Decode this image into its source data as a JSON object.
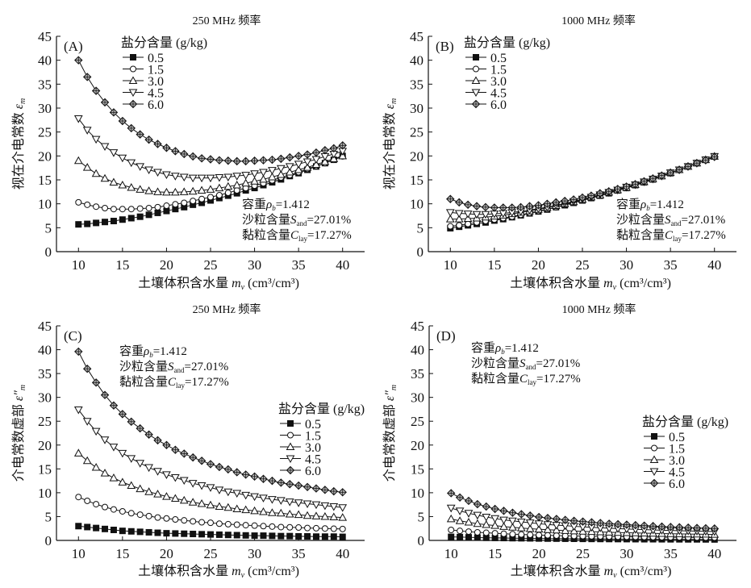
{
  "chart_data": [
    {
      "id": "A",
      "type": "line",
      "panel_label": "(A)",
      "title": "250 MHz 频率",
      "xlabel_cn": "土壤体积含水量",
      "xlabel_sym": "m",
      "xlabel_sub": "v",
      "xlabel_unit": "(cm³/cm³)",
      "ylabel_cn": "视在介电常数",
      "ylabel_sym": "ε",
      "ylabel_sub": "m",
      "xlim": [
        7.5,
        42.5
      ],
      "ylim": [
        0,
        45
      ],
      "xticks": [
        10,
        15,
        20,
        25,
        30,
        35,
        40
      ],
      "yticks": [
        0,
        5,
        10,
        15,
        20,
        25,
        30,
        35,
        40,
        45
      ],
      "legend_title": "盐分含量 (g/kg)",
      "legend_position": "top-center",
      "annotation_position": "bottom-right",
      "annotation": [
        "容重ρb=1.412",
        "沙粒含量Sand=27.01%",
        "黏粒含量Clay=17.27%"
      ],
      "x": [
        10,
        11,
        12,
        13,
        14,
        15,
        16,
        17,
        18,
        19,
        20,
        21,
        22,
        23,
        24,
        25,
        26,
        27,
        28,
        29,
        30,
        31,
        32,
        33,
        34,
        35,
        36,
        37,
        38,
        39,
        40
      ],
      "series": [
        {
          "name": "0.5",
          "marker": "square-filled",
          "values": [
            5.7,
            5.8,
            6.0,
            6.2,
            6.4,
            6.7,
            7.0,
            7.3,
            7.7,
            8.1,
            8.5,
            8.9,
            9.3,
            9.8,
            10.2,
            10.7,
            11.2,
            11.7,
            12.2,
            12.8,
            13.3,
            13.9,
            14.5,
            15.1,
            15.8,
            16.4,
            17.1,
            17.8,
            18.5,
            19.2,
            20.0
          ]
        },
        {
          "name": "1.5",
          "marker": "circle-open",
          "values": [
            10.3,
            9.8,
            9.4,
            9.1,
            8.9,
            8.9,
            8.9,
            9.0,
            9.1,
            9.3,
            9.6,
            9.9,
            10.2,
            10.6,
            11.0,
            11.4,
            11.8,
            12.3,
            12.8,
            13.3,
            13.8,
            14.3,
            14.9,
            15.5,
            16.0,
            16.6,
            17.3,
            17.9,
            18.5,
            19.2,
            19.9
          ]
        },
        {
          "name": "3.0",
          "marker": "triangle-up-open",
          "values": [
            19.0,
            17.6,
            16.3,
            15.3,
            14.5,
            13.9,
            13.4,
            13.0,
            12.7,
            12.5,
            12.4,
            12.4,
            12.5,
            12.6,
            12.8,
            13.0,
            13.3,
            13.6,
            13.9,
            14.3,
            14.7,
            15.1,
            15.6,
            16.1,
            16.6,
            17.1,
            17.6,
            18.2,
            18.8,
            19.4,
            20.0
          ]
        },
        {
          "name": "4.5",
          "marker": "triangle-down-open",
          "values": [
            27.8,
            25.4,
            23.5,
            22.0,
            20.7,
            19.6,
            18.6,
            17.8,
            17.1,
            16.6,
            16.1,
            15.8,
            15.6,
            15.4,
            15.4,
            15.4,
            15.5,
            15.6,
            15.8,
            16.0,
            16.3,
            16.6,
            17.0,
            17.4,
            17.8,
            18.3,
            18.8,
            19.3,
            19.9,
            20.4,
            21.0
          ]
        },
        {
          "name": "6.0",
          "marker": "diamond-cross",
          "values": [
            40.0,
            36.5,
            33.6,
            31.2,
            29.1,
            27.3,
            25.8,
            24.5,
            23.4,
            22.5,
            21.7,
            21.0,
            20.4,
            19.9,
            19.5,
            19.3,
            19.1,
            19.0,
            18.9,
            18.9,
            19.0,
            19.1,
            19.2,
            19.4,
            19.7,
            20.0,
            20.3,
            20.7,
            21.2,
            21.6,
            22.2
          ]
        }
      ]
    },
    {
      "id": "B",
      "type": "line",
      "panel_label": "(B)",
      "title": "1000 MHz 频率",
      "xlabel_cn": "土壤体积含水量",
      "xlabel_sym": "m",
      "xlabel_sub": "v",
      "xlabel_unit": "(cm³/cm³)",
      "ylabel_cn": "视在介电常数",
      "ylabel_sym": "ε",
      "ylabel_sub": "m",
      "xlim": [
        7.5,
        42.5
      ],
      "ylim": [
        0,
        45
      ],
      "xticks": [
        10,
        15,
        20,
        25,
        30,
        35,
        40
      ],
      "yticks": [
        0,
        5,
        10,
        15,
        20,
        25,
        30,
        35,
        40,
        45
      ],
      "legend_title": "盐分含量 (g/kg)",
      "legend_position": "top-left",
      "annotation_position": "bottom-right",
      "annotation": [
        "容重ρb=1.412",
        "沙粒含量Sand=27.01%",
        "黏粒含量Clay=17.27%"
      ],
      "x": [
        10,
        11,
        12,
        13,
        14,
        15,
        16,
        17,
        18,
        19,
        20,
        21,
        22,
        23,
        24,
        25,
        26,
        27,
        28,
        29,
        30,
        31,
        32,
        33,
        34,
        35,
        36,
        37,
        38,
        39,
        40
      ],
      "series": [
        {
          "name": "0.5",
          "marker": "square-filled",
          "values": [
            4.9,
            5.2,
            5.5,
            5.8,
            6.1,
            6.5,
            6.8,
            7.2,
            7.6,
            8.0,
            8.4,
            8.8,
            9.3,
            9.7,
            10.2,
            10.7,
            11.2,
            11.7,
            12.2,
            12.8,
            13.3,
            13.9,
            14.5,
            15.1,
            15.8,
            16.4,
            17.1,
            17.8,
            18.5,
            19.2,
            19.9
          ]
        },
        {
          "name": "1.5",
          "marker": "circle-open",
          "values": [
            5.3,
            5.5,
            5.8,
            6.1,
            6.4,
            6.7,
            7.0,
            7.3,
            7.7,
            8.1,
            8.5,
            8.9,
            9.3,
            9.8,
            10.3,
            10.7,
            11.2,
            11.7,
            12.3,
            12.8,
            13.3,
            13.9,
            14.5,
            15.1,
            15.8,
            16.4,
            17.1,
            17.8,
            18.5,
            19.2,
            19.9
          ]
        },
        {
          "name": "3.0",
          "marker": "triangle-up-open",
          "values": [
            6.8,
            6.8,
            6.9,
            7.0,
            7.2,
            7.4,
            7.6,
            7.9,
            8.2,
            8.5,
            8.8,
            9.2,
            9.6,
            10.0,
            10.4,
            10.9,
            11.4,
            11.8,
            12.4,
            12.9,
            13.4,
            14.0,
            14.6,
            15.2,
            15.8,
            16.5,
            17.1,
            17.8,
            18.5,
            19.2,
            19.9
          ]
        },
        {
          "name": "4.5",
          "marker": "triangle-down-open",
          "values": [
            8.2,
            8.0,
            7.9,
            7.8,
            7.8,
            7.9,
            8.0,
            8.2,
            8.4,
            8.7,
            9.0,
            9.3,
            9.7,
            10.1,
            10.5,
            11.0,
            11.4,
            11.9,
            12.4,
            12.9,
            13.5,
            14.0,
            14.6,
            15.2,
            15.8,
            16.5,
            17.1,
            17.8,
            18.5,
            19.2,
            19.9
          ]
        },
        {
          "name": "6.0",
          "marker": "diamond-cross",
          "values": [
            11.0,
            10.3,
            9.8,
            9.5,
            9.3,
            9.2,
            9.2,
            9.2,
            9.3,
            9.5,
            9.7,
            10.0,
            10.3,
            10.6,
            10.9,
            11.3,
            11.7,
            12.2,
            12.6,
            13.1,
            13.6,
            14.1,
            14.7,
            15.3,
            15.9,
            16.5,
            17.1,
            17.8,
            18.5,
            19.1,
            19.8
          ]
        }
      ]
    },
    {
      "id": "C",
      "type": "line",
      "panel_label": "(C)",
      "title": "250 MHz 频率",
      "xlabel_cn": "土壤体积含水量",
      "xlabel_sym": "m",
      "xlabel_sub": "v",
      "xlabel_unit": "(cm³/cm³)",
      "ylabel_cn": "介电常数虚部",
      "ylabel_sym": "ε″",
      "ylabel_sub": "m",
      "xlim": [
        7.5,
        42.5
      ],
      "ylim": [
        0,
        45
      ],
      "xticks": [
        10,
        15,
        20,
        25,
        30,
        35,
        40
      ],
      "yticks": [
        0,
        5,
        10,
        15,
        20,
        25,
        30,
        35,
        40,
        45
      ],
      "legend_title": "盐分含量 (g/kg)",
      "legend_position": "right",
      "annotation_position": "top-center",
      "annotation": [
        "容重ρb=1.412",
        "沙粒含量Sand=27.01%",
        "黏粒含量Clay=17.27%"
      ],
      "x": [
        10,
        11,
        12,
        13,
        14,
        15,
        16,
        17,
        18,
        19,
        20,
        21,
        22,
        23,
        24,
        25,
        26,
        27,
        28,
        29,
        30,
        31,
        32,
        33,
        34,
        35,
        36,
        37,
        38,
        39,
        40
      ],
      "series": [
        {
          "name": "0.5",
          "marker": "square-filled",
          "values": [
            3.0,
            2.8,
            2.6,
            2.4,
            2.2,
            2.0,
            1.9,
            1.8,
            1.7,
            1.6,
            1.5,
            1.45,
            1.4,
            1.35,
            1.3,
            1.25,
            1.2,
            1.15,
            1.1,
            1.05,
            1.0,
            1.0,
            0.95,
            0.9,
            0.9,
            0.85,
            0.85,
            0.8,
            0.8,
            0.8,
            0.75
          ]
        },
        {
          "name": "1.5",
          "marker": "circle-open",
          "values": [
            9.1,
            8.3,
            7.6,
            7.0,
            6.5,
            6.1,
            5.7,
            5.4,
            5.1,
            4.8,
            4.6,
            4.4,
            4.2,
            4.0,
            3.8,
            3.7,
            3.5,
            3.4,
            3.3,
            3.2,
            3.1,
            3.0,
            2.9,
            2.8,
            2.75,
            2.7,
            2.6,
            2.55,
            2.5,
            2.45,
            2.4
          ]
        },
        {
          "name": "3.0",
          "marker": "triangle-up-open",
          "values": [
            18.3,
            16.7,
            15.3,
            14.1,
            13.1,
            12.2,
            11.5,
            10.8,
            10.2,
            9.7,
            9.2,
            8.8,
            8.4,
            8.0,
            7.7,
            7.4,
            7.1,
            6.9,
            6.6,
            6.4,
            6.2,
            6.0,
            5.8,
            5.7,
            5.5,
            5.4,
            5.2,
            5.1,
            5.0,
            4.9,
            4.8
          ]
        },
        {
          "name": "4.5",
          "marker": "triangle-down-open",
          "values": [
            27.4,
            25.0,
            22.9,
            21.1,
            19.6,
            18.3,
            17.2,
            16.2,
            15.3,
            14.5,
            13.8,
            13.2,
            12.6,
            12.0,
            11.5,
            11.1,
            10.6,
            10.2,
            9.9,
            9.5,
            9.2,
            8.9,
            8.6,
            8.4,
            8.1,
            7.9,
            7.7,
            7.5,
            7.3,
            7.1,
            6.9
          ]
        },
        {
          "name": "6.0",
          "marker": "diamond-cross",
          "values": [
            39.6,
            36.0,
            33.1,
            30.5,
            28.3,
            26.5,
            24.9,
            23.5,
            22.2,
            21.0,
            20.0,
            19.0,
            18.2,
            17.4,
            16.7,
            16.0,
            15.4,
            14.9,
            14.3,
            13.8,
            13.4,
            12.9,
            12.5,
            12.1,
            11.8,
            11.5,
            11.2,
            10.9,
            10.6,
            10.3,
            10.1
          ]
        }
      ]
    },
    {
      "id": "D",
      "type": "line",
      "panel_label": "(D)",
      "title": "1000 MHz 频率",
      "xlabel_cn": "土壤体积含水量",
      "xlabel_sym": "m",
      "xlabel_sub": "v",
      "xlabel_unit": "(cm³/cm³)",
      "ylabel_cn": "介电常数虚部",
      "ylabel_sym": "ε″",
      "ylabel_sub": "m",
      "xlim": [
        7.5,
        42.5
      ],
      "ylim": [
        0,
        45
      ],
      "xticks": [
        10,
        15,
        20,
        25,
        30,
        35,
        40
      ],
      "yticks": [
        0,
        5,
        10,
        15,
        20,
        25,
        30,
        35,
        40,
        45
      ],
      "legend_title": "盐分含量 (g/kg)",
      "legend_position": "right",
      "annotation_position": "top-left",
      "annotation": [
        "容重ρb=1.412",
        "沙粒含量Sand=27.01%",
        "黏粒含量Clay=17.27%"
      ],
      "x": [
        10,
        11,
        12,
        13,
        14,
        15,
        16,
        17,
        18,
        19,
        20,
        21,
        22,
        23,
        24,
        25,
        26,
        27,
        28,
        29,
        30,
        31,
        32,
        33,
        34,
        35,
        36,
        37,
        38,
        39,
        40
      ],
      "series": [
        {
          "name": "0.5",
          "marker": "square-filled",
          "values": [
            0.75,
            0.7,
            0.65,
            0.6,
            0.55,
            0.52,
            0.5,
            0.47,
            0.45,
            0.43,
            0.4,
            0.38,
            0.37,
            0.35,
            0.34,
            0.32,
            0.31,
            0.3,
            0.29,
            0.28,
            0.27,
            0.26,
            0.25,
            0.25,
            0.24,
            0.23,
            0.23,
            0.22,
            0.22,
            0.21,
            0.2
          ]
        },
        {
          "name": "1.5",
          "marker": "circle-open",
          "values": [
            2.2,
            2.0,
            1.85,
            1.7,
            1.6,
            1.5,
            1.4,
            1.32,
            1.25,
            1.18,
            1.12,
            1.07,
            1.02,
            0.98,
            0.94,
            0.9,
            0.87,
            0.84,
            0.81,
            0.78,
            0.76,
            0.74,
            0.72,
            0.7,
            0.68,
            0.66,
            0.65,
            0.63,
            0.62,
            0.6,
            0.59
          ]
        },
        {
          "name": "3.0",
          "marker": "triangle-up-open",
          "values": [
            4.5,
            4.1,
            3.8,
            3.5,
            3.3,
            3.1,
            2.9,
            2.75,
            2.6,
            2.45,
            2.35,
            2.25,
            2.15,
            2.05,
            1.97,
            1.9,
            1.83,
            1.77,
            1.71,
            1.66,
            1.61,
            1.56,
            1.52,
            1.48,
            1.44,
            1.4,
            1.37,
            1.34,
            1.31,
            1.28,
            1.25
          ]
        },
        {
          "name": "4.5",
          "marker": "triangle-down-open",
          "values": [
            6.8,
            6.2,
            5.7,
            5.3,
            4.9,
            4.6,
            4.3,
            4.1,
            3.9,
            3.7,
            3.5,
            3.35,
            3.2,
            3.1,
            2.95,
            2.85,
            2.75,
            2.65,
            2.56,
            2.48,
            2.4,
            2.33,
            2.27,
            2.2,
            2.14,
            2.09,
            2.04,
            1.99,
            1.94,
            1.9,
            1.86
          ]
        },
        {
          "name": "6.0",
          "marker": "diamond-cross",
          "values": [
            9.9,
            9.0,
            8.3,
            7.6,
            7.1,
            6.6,
            6.2,
            5.8,
            5.5,
            5.2,
            4.9,
            4.7,
            4.5,
            4.3,
            4.1,
            3.95,
            3.8,
            3.65,
            3.5,
            3.4,
            3.3,
            3.2,
            3.1,
            3.0,
            2.9,
            2.82,
            2.75,
            2.68,
            2.6,
            2.55,
            2.5
          ]
        }
      ]
    }
  ]
}
